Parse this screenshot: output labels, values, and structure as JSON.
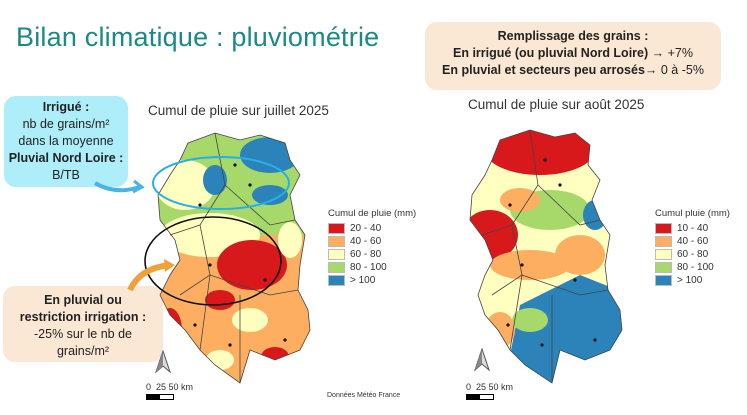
{
  "title": "Bilan climatique : pluviométrie",
  "callout_irrigated": {
    "line1": "Irrigué :",
    "line2": "nb de grains/m²",
    "line3": "dans la moyenne",
    "line4": "Pluvial Nord Loire :",
    "line5": "B/TB"
  },
  "callout_grain_fill": {
    "line1": "Remplissage des grains :",
    "line2_bold": "En irrigué (ou pluvial Nord Loire)",
    "line2_rest": "→ +7%",
    "line3_bold": "En pluvial et secteurs peu arrosés",
    "line3_rest": "→ 0 à -5%"
  },
  "callout_rainfed": {
    "line1": "En pluvial ou",
    "line2": "restriction irrigation :",
    "line3": "-25% sur le nb de",
    "line4": "grains/m²"
  },
  "map_july": {
    "title": "Cumul de pluie sur juillet 2025",
    "legend_title": "Cumul de pluie (mm)",
    "legend": [
      {
        "label": "20 - 40",
        "color": "#d7191c"
      },
      {
        "label": "40 - 60",
        "color": "#fdae61"
      },
      {
        "label": "60 - 80",
        "color": "#ffffbf"
      },
      {
        "label": "80 - 100",
        "color": "#a6d96a"
      },
      {
        "label": "> 100",
        "color": "#2b83ba"
      }
    ],
    "scale": "0  25 50 km",
    "source": "Données Météo France"
  },
  "map_august": {
    "title": "Cumul de pluie sur août 2025",
    "legend_title": "Cumul pluie (mm)",
    "legend": [
      {
        "label": "10 - 40",
        "color": "#d7191c"
      },
      {
        "label": "40 - 60",
        "color": "#fdae61"
      },
      {
        "label": "60 - 80",
        "color": "#ffffbf"
      },
      {
        "label": "80 - 100",
        "color": "#a6d96a"
      },
      {
        "label": "> 100",
        "color": "#2b83ba"
      }
    ],
    "scale": "0  25 50 km"
  }
}
